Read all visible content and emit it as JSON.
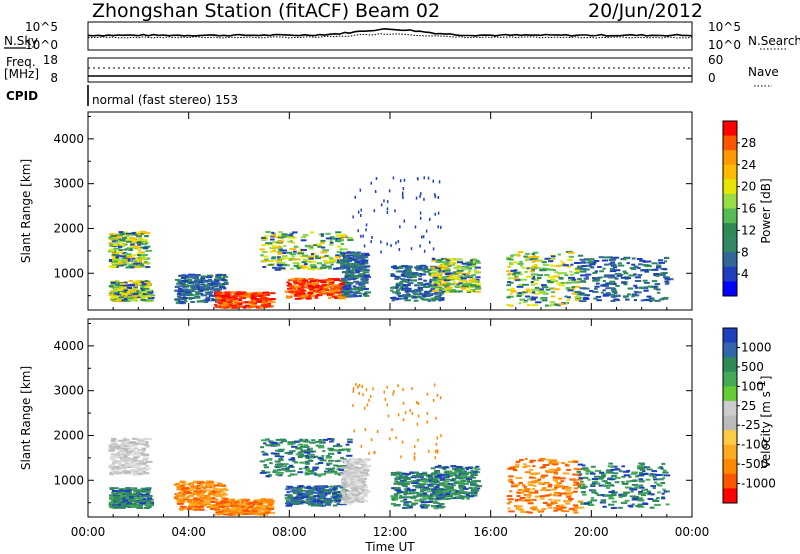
{
  "header": {
    "title": "Zhongshan Station (fitACF)",
    "beam": "Beam 02",
    "date": "20/Jun/2012"
  },
  "strip": {
    "nsky_label": "N.Sky",
    "nsky_ticks": [
      "10^5",
      "10^0"
    ],
    "nsearch_label": "N.Search",
    "nsearch_ticks": [
      "10^5",
      "10^0"
    ],
    "freq_label": "Freq.",
    "freq_unit": "[MHz]",
    "freq_ticks": [
      "18",
      "8"
    ],
    "nave_label": "Nave",
    "nave_ticks": [
      "60",
      "0"
    ],
    "cpid_label": "CPID",
    "cpid_text": "normal (fast stereo) 153"
  },
  "chart_data": [
    {
      "type": "heatmap",
      "name": "power-panel",
      "ylabel": "Slant Range [km]",
      "yticks": [
        "4000",
        "3000",
        "2000",
        "1000"
      ],
      "ytick_values": [
        4000,
        3000,
        2000,
        1000
      ],
      "ylim": [
        180,
        4600
      ],
      "xlim": [
        0,
        24
      ],
      "colorbar_label": "Power [dB]",
      "colorbar_ticks": [
        "28",
        "24",
        "20",
        "16",
        "12",
        "8",
        "4"
      ],
      "colorbar_colors": [
        "#ff0000",
        "#ff5500",
        "#ff9900",
        "#ffbb00",
        "#e6e600",
        "#99dd44",
        "#55bb55",
        "#2e8b57",
        "#338866",
        "#336699",
        "#1f3fbf",
        "#0000ff"
      ],
      "blobs": [
        {
          "x": [
            0.8,
            2.3
          ],
          "y": [
            1150,
            1950
          ],
          "level": "mid"
        },
        {
          "x": [
            0.8,
            2.4
          ],
          "y": [
            400,
            850
          ],
          "level": "mid"
        },
        {
          "x": [
            3.4,
            5.4
          ],
          "y": [
            350,
            1000
          ],
          "level": "low"
        },
        {
          "x": [
            5.0,
            7.2
          ],
          "y": [
            250,
            600
          ],
          "level": "high"
        },
        {
          "x": [
            6.8,
            10.3
          ],
          "y": [
            1100,
            1950
          ],
          "level": "mid"
        },
        {
          "x": [
            7.8,
            10.2
          ],
          "y": [
            450,
            900
          ],
          "level": "high"
        },
        {
          "x": [
            10.0,
            11.0
          ],
          "y": [
            500,
            1500
          ],
          "level": "low"
        },
        {
          "x": [
            12.0,
            14.0
          ],
          "y": [
            400,
            1200
          ],
          "level": "low"
        },
        {
          "x": [
            13.6,
            15.4
          ],
          "y": [
            600,
            1350
          ],
          "level": "mid"
        },
        {
          "x": [
            16.6,
            19.5
          ],
          "y": [
            300,
            1500
          ],
          "level": "mid"
        },
        {
          "x": [
            19.4,
            23.0
          ],
          "y": [
            400,
            1400
          ],
          "level": "low"
        }
      ]
    },
    {
      "type": "heatmap",
      "name": "velocity-panel",
      "ylabel": "Slant Range [km]",
      "yticks": [
        "4000",
        "3000",
        "2000",
        "1000"
      ],
      "ytick_values": [
        4000,
        3000,
        2000,
        1000
      ],
      "ylim": [
        180,
        4600
      ],
      "xlim": [
        0,
        24
      ],
      "colorbar_label": "Velocity [m s",
      "colorbar_label_sup": "-1",
      "colorbar_label_end": "]",
      "colorbar_ticks": [
        "1000",
        "500",
        "100",
        "25",
        "-25",
        "-100",
        "-500",
        "-1000"
      ],
      "colorbar_colors": [
        "#1f3fbf",
        "#3366aa",
        "#2e8b57",
        "#44aa55",
        "#66cc33",
        "#cccccc",
        "#bbbbbb",
        "#ffcc44",
        "#ffaa22",
        "#ff8800",
        "#ff5500",
        "#ff0000"
      ],
      "blobs": [
        {
          "x": [
            0.8,
            2.3
          ],
          "y": [
            1150,
            1950
          ],
          "level": "grey"
        },
        {
          "x": [
            0.8,
            2.4
          ],
          "y": [
            400,
            850
          ],
          "level": "green"
        },
        {
          "x": [
            3.4,
            5.4
          ],
          "y": [
            350,
            1000
          ],
          "level": "orange"
        },
        {
          "x": [
            5.0,
            7.2
          ],
          "y": [
            250,
            600
          ],
          "level": "orange"
        },
        {
          "x": [
            6.8,
            10.3
          ],
          "y": [
            1100,
            1950
          ],
          "level": "green"
        },
        {
          "x": [
            7.8,
            10.2
          ],
          "y": [
            450,
            900
          ],
          "level": "blue"
        },
        {
          "x": [
            10.0,
            11.0
          ],
          "y": [
            500,
            1500
          ],
          "level": "grey"
        },
        {
          "x": [
            12.0,
            14.0
          ],
          "y": [
            400,
            1200
          ],
          "level": "green"
        },
        {
          "x": [
            13.6,
            15.4
          ],
          "y": [
            600,
            1350
          ],
          "level": "green"
        },
        {
          "x": [
            16.6,
            19.5
          ],
          "y": [
            300,
            1500
          ],
          "level": "orange"
        },
        {
          "x": [
            19.4,
            23.0
          ],
          "y": [
            400,
            1400
          ],
          "level": "green"
        }
      ]
    }
  ],
  "xaxis": {
    "ticks": [
      "00:00",
      "04:00",
      "08:00",
      "12:00",
      "16:00",
      "20:00",
      "00:00"
    ],
    "tick_values": [
      0,
      4,
      8,
      12,
      16,
      20,
      24
    ],
    "label": "Time UT"
  }
}
